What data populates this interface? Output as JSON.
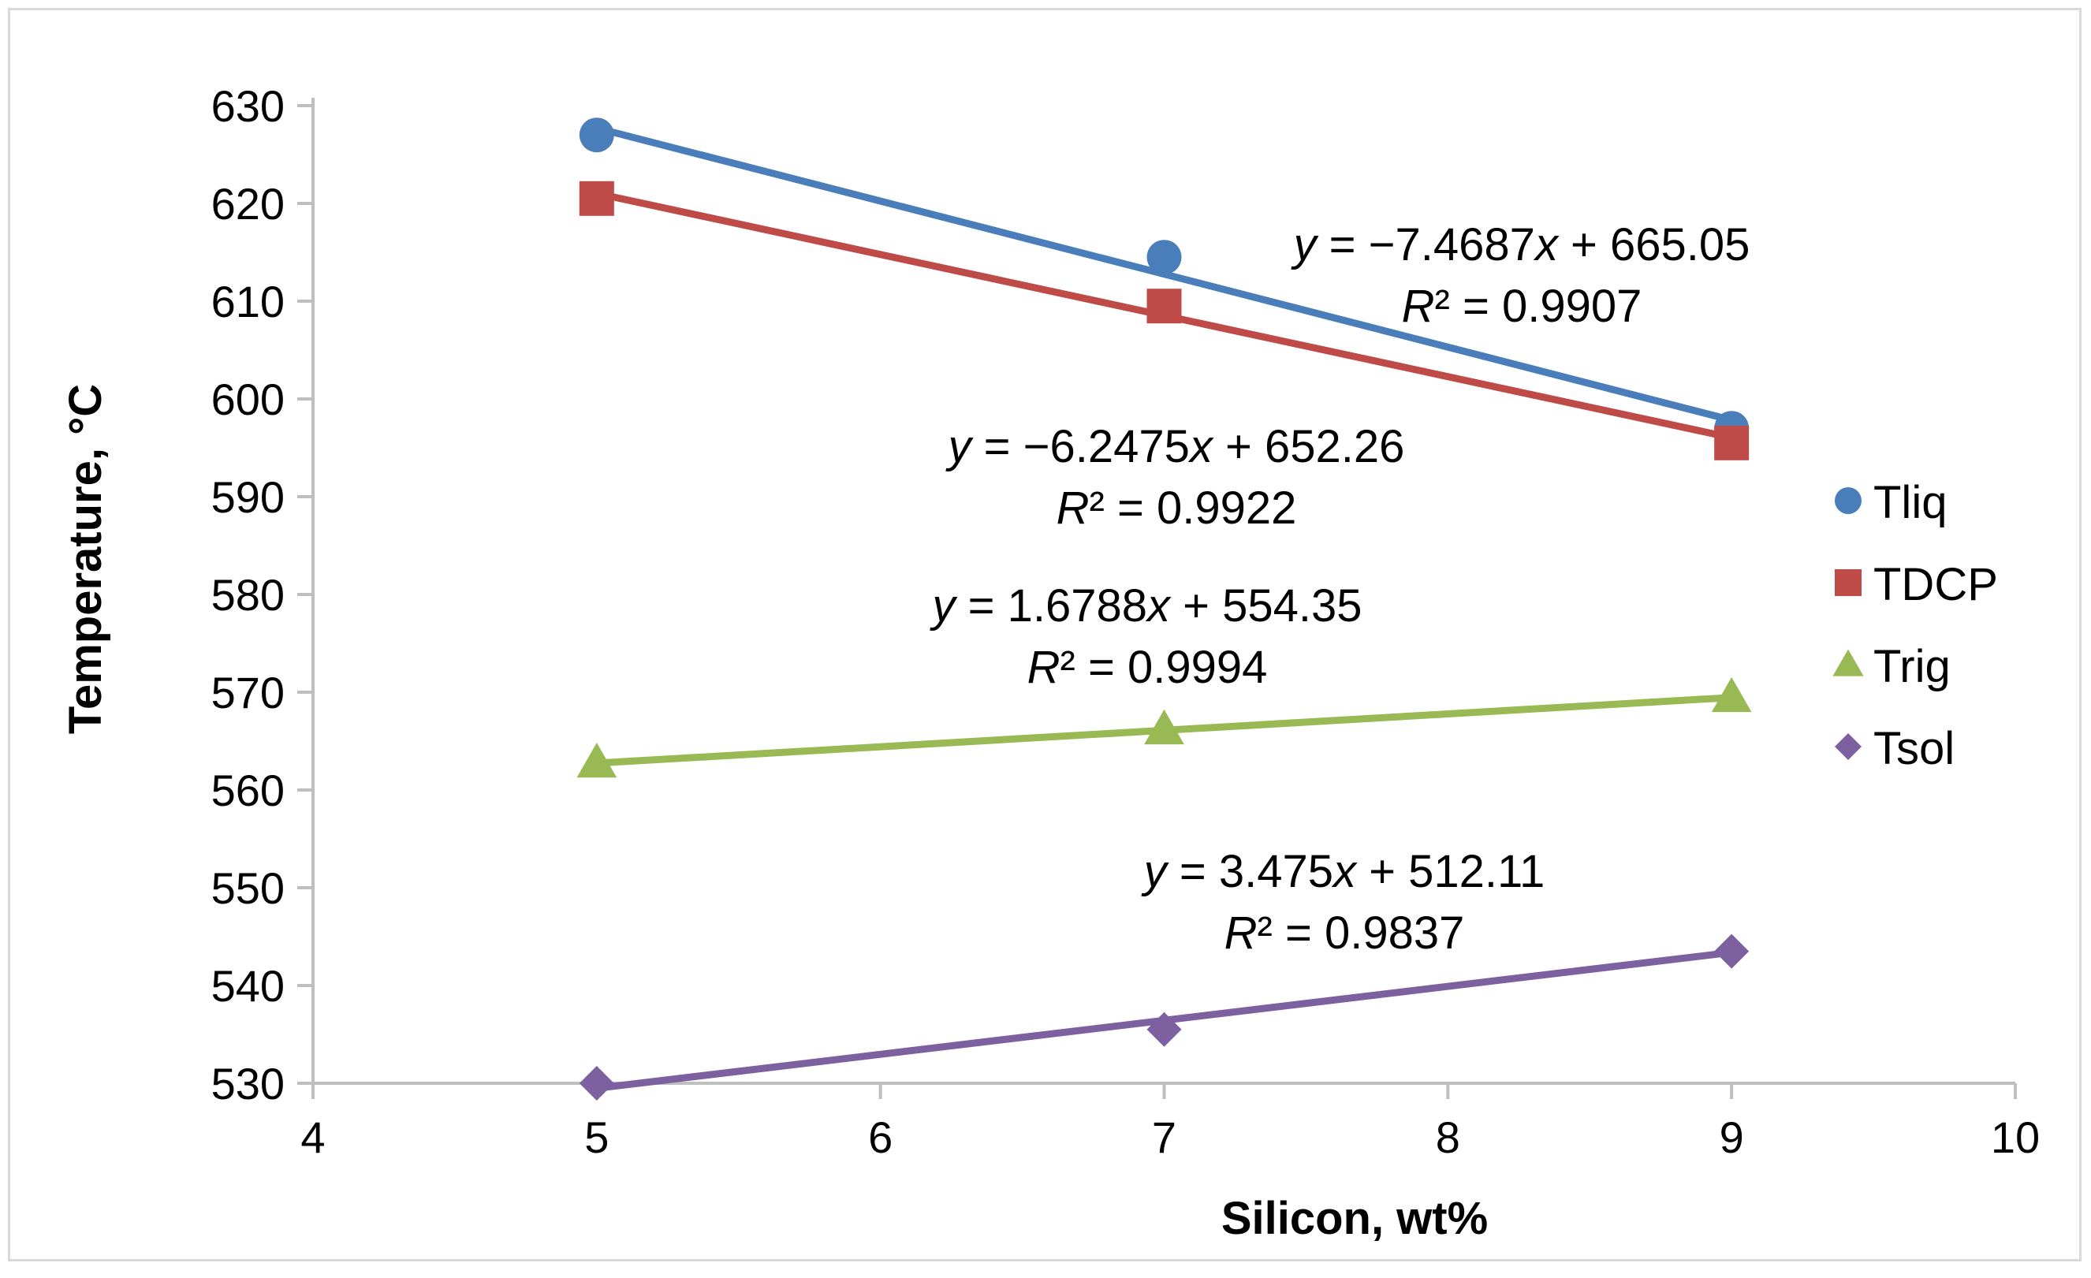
{
  "chart_data": {
    "type": "scatter",
    "title": "",
    "xlabel": "Silicon, wt%",
    "ylabel": "Temperature, °C",
    "xlim": [
      4,
      10
    ],
    "ylim": [
      530,
      630
    ],
    "x_ticks": [
      "4",
      "5",
      "6",
      "7",
      "8",
      "9",
      "10"
    ],
    "y_ticks": [
      "530",
      "540",
      "550",
      "560",
      "570",
      "580",
      "590",
      "600",
      "610",
      "620",
      "630"
    ],
    "grid": false,
    "legend_position": "right",
    "series": [
      {
        "name": "Tliq",
        "color": "#4a7ebb",
        "marker": "circle",
        "x": [
          5,
          7,
          9
        ],
        "y": [
          627,
          614.5,
          597
        ],
        "trendline": {
          "slope": -7.4687,
          "intercept": 665.05,
          "eq_y": "y",
          "eq_x": "x",
          "eq_a": " = −7.4687",
          "eq_b": " + 665.05",
          "r2_r": "R",
          "r2_b": "² = 0.9907"
        }
      },
      {
        "name": "TDCP",
        "color": "#be4b48",
        "marker": "square",
        "x": [
          5,
          7,
          9
        ],
        "y": [
          620.5,
          609.5,
          595.5
        ],
        "trendline": {
          "slope": -6.2475,
          "intercept": 652.26,
          "eq_y": "y",
          "eq_x": "x",
          "eq_a": " = −6.2475",
          "eq_b": " + 652.26",
          "r2_r": "R",
          "r2_b": "² = 0.9922"
        }
      },
      {
        "name": "Trig",
        "color": "#98b954",
        "marker": "triangle",
        "x": [
          5,
          7,
          9
        ],
        "y": [
          562.8,
          566.2,
          569.5
        ],
        "trendline": {
          "slope": 1.6788,
          "intercept": 554.35,
          "eq_y": "y",
          "eq_x": "x",
          "eq_a": " = 1.6788",
          "eq_b": " + 554.35",
          "r2_r": "R",
          "r2_b": "² = 0.9994"
        }
      },
      {
        "name": "Tsol",
        "color": "#7d60a0",
        "marker": "diamond",
        "x": [
          5,
          7,
          9
        ],
        "y": [
          530,
          535.5,
          543.5
        ],
        "trendline": {
          "slope": 3.475,
          "intercept": 512.11,
          "eq_y": "y",
          "eq_x": "x",
          "eq_a": " = 3.475",
          "eq_b": " + 512.11",
          "r2_r": "R",
          "r2_b": "² = 0.9837"
        }
      }
    ]
  }
}
